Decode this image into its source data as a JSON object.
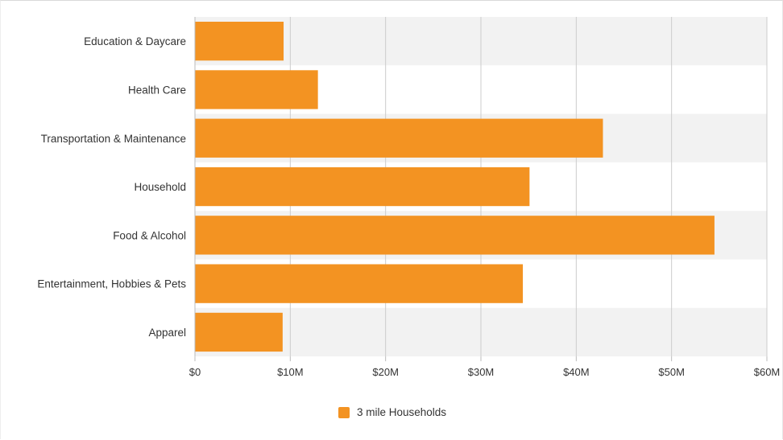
{
  "chart_data": {
    "type": "bar",
    "orientation": "horizontal",
    "categories": [
      "Education & Daycare",
      "Health Care",
      "Transportation & Maintenance",
      "Household",
      "Food & Alcohol",
      "Entertainment, Hobbies & Pets",
      "Apparel"
    ],
    "series": [
      {
        "name": "3 mile Households",
        "color": "#F39322",
        "values": [
          9.3,
          12.9,
          42.8,
          35.1,
          54.5,
          34.4,
          9.2
        ]
      }
    ],
    "xlim": [
      0,
      60
    ],
    "x_ticks": [
      0,
      10,
      20,
      30,
      40,
      50,
      60
    ],
    "x_tick_labels": [
      "$0",
      "$10M",
      "$20M",
      "$30M",
      "$40M",
      "$50M",
      "$60M"
    ],
    "title": "",
    "xlabel": "",
    "ylabel": "",
    "grid": "vertical",
    "band_colors": [
      "#f2f2f2",
      "#ffffff"
    ],
    "legend_position": "bottom-center"
  }
}
